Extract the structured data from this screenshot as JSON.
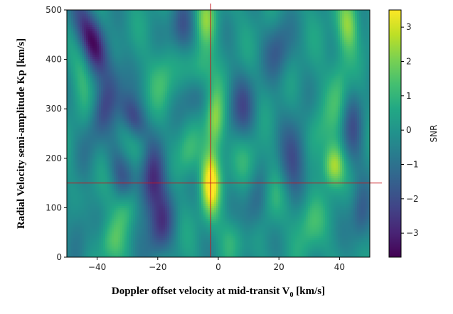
{
  "chart_data": {
    "type": "heatmap",
    "xlabel": "Doppler offset velocity at mid-transit V",
    "xlabel_subscript": "0",
    "xlabel_unit": " [km/s]",
    "ylabel": "Radial Velocity semi-amplitude Kp [km/s]",
    "xlim": [
      -50,
      50
    ],
    "ylim": [
      0,
      500
    ],
    "xticks": [
      -40,
      -20,
      0,
      20,
      40
    ],
    "yticks": [
      0,
      100,
      200,
      300,
      400,
      500
    ],
    "colorbar": {
      "label": "SNR",
      "range": [
        -3.7,
        3.5
      ],
      "ticks": [
        3,
        2,
        1,
        0,
        -1,
        -2,
        -3
      ],
      "tick_labels": [
        "3",
        "2",
        "1",
        "0",
        "−1",
        "−2",
        "−3"
      ],
      "colormap": "viridis"
    },
    "crosshair": {
      "x": -2.5,
      "y": 150,
      "color": "#c8141e"
    },
    "peak": {
      "x": -2.5,
      "y": 150,
      "snr": 3.5
    },
    "features": [
      {
        "x": -42,
        "y": 440,
        "sx": 3.5,
        "sy": 55,
        "tilt": -0.06,
        "amp": -3.3
      },
      {
        "x": -38,
        "y": 300,
        "sx": 3,
        "sy": 60,
        "tilt": 0.05,
        "amp": -1.6
      },
      {
        "x": -32,
        "y": 170,
        "sx": 3,
        "sy": 40,
        "tilt": -0.04,
        "amp": -1.4
      },
      {
        "x": -28,
        "y": 280,
        "sx": 3,
        "sy": 35,
        "tilt": -0.05,
        "amp": -2.4
      },
      {
        "x": -22,
        "y": 150,
        "sx": 3.5,
        "sy": 55,
        "tilt": 0.02,
        "amp": -2.8
      },
      {
        "x": -19,
        "y": 60,
        "sx": 3,
        "sy": 45,
        "tilt": 0.02,
        "amp": -2.0
      },
      {
        "x": -12,
        "y": 460,
        "sx": 3,
        "sy": 40,
        "tilt": 0.0,
        "amp": -1.8
      },
      {
        "x": -8,
        "y": 320,
        "sx": 3,
        "sy": 35,
        "tilt": 0.0,
        "amp": -1.3
      },
      {
        "x": 8,
        "y": 300,
        "sx": 3.5,
        "sy": 50,
        "tilt": 0.0,
        "amp": -1.7
      },
      {
        "x": 12,
        "y": 100,
        "sx": 3,
        "sy": 45,
        "tilt": 0.03,
        "amp": -1.5
      },
      {
        "x": 20,
        "y": 420,
        "sx": 3,
        "sy": 45,
        "tilt": 0.0,
        "amp": -1.6
      },
      {
        "x": 25,
        "y": 200,
        "sx": 3.5,
        "sy": 55,
        "tilt": 0.02,
        "amp": -2.0
      },
      {
        "x": 44,
        "y": 260,
        "sx": 3,
        "sy": 60,
        "tilt": 0.0,
        "amp": -1.6
      },
      {
        "x": 47,
        "y": 80,
        "sx": 2.5,
        "sy": 45,
        "tilt": 0.0,
        "amp": -1.5
      },
      {
        "x": -46,
        "y": 60,
        "sx": 2.5,
        "sy": 45,
        "tilt": 0.0,
        "amp": -1.0
      },
      {
        "x": -2.5,
        "y": 150,
        "sx": 2.2,
        "sy": 45,
        "tilt": 0.0,
        "amp": 3.6
      },
      {
        "x": -1,
        "y": 275,
        "sx": 2.2,
        "sy": 45,
        "tilt": 0.0,
        "amp": 2.6
      },
      {
        "x": -4,
        "y": 480,
        "sx": 2.5,
        "sy": 40,
        "tilt": 0.0,
        "amp": 1.8
      },
      {
        "x": -6,
        "y": 380,
        "sx": 3,
        "sy": 35,
        "tilt": 0.0,
        "amp": 1.5
      },
      {
        "x": -10,
        "y": 210,
        "sx": 2.5,
        "sy": 35,
        "tilt": 0.0,
        "amp": 1.3
      },
      {
        "x": -30,
        "y": 100,
        "sx": 3,
        "sy": 35,
        "tilt": 0.03,
        "amp": 1.6
      },
      {
        "x": -36,
        "y": 30,
        "sx": 3,
        "sy": 30,
        "tilt": 0.0,
        "amp": 1.2
      },
      {
        "x": -45,
        "y": 380,
        "sx": 2.5,
        "sy": 50,
        "tilt": 0.0,
        "amp": 1.0
      },
      {
        "x": -18,
        "y": 360,
        "sx": 3,
        "sy": 45,
        "tilt": 0.0,
        "amp": 1.2
      },
      {
        "x": 10,
        "y": 200,
        "sx": 3,
        "sy": 40,
        "tilt": 0.0,
        "amp": 1.0
      },
      {
        "x": 18,
        "y": 120,
        "sx": 3,
        "sy": 40,
        "tilt": 0.0,
        "amp": 1.1
      },
      {
        "x": 38,
        "y": 185,
        "sx": 2.5,
        "sy": 30,
        "tilt": 0.0,
        "amp": 2.8
      },
      {
        "x": 40,
        "y": 330,
        "sx": 2.5,
        "sy": 60,
        "tilt": 0.0,
        "amp": 1.4
      },
      {
        "x": 43,
        "y": 470,
        "sx": 2.5,
        "sy": 40,
        "tilt": 0.0,
        "amp": 2.2
      },
      {
        "x": 30,
        "y": 70,
        "sx": 3,
        "sy": 40,
        "tilt": 0.0,
        "amp": 1.3
      },
      {
        "x": 33,
        "y": 250,
        "sx": 3,
        "sy": 40,
        "tilt": 0.0,
        "amp": 1.0
      },
      {
        "x": 5,
        "y": 40,
        "sx": 3,
        "sy": 30,
        "tilt": 0.0,
        "amp": 1.0
      },
      {
        "x": -25,
        "y": 230,
        "sx": 2.5,
        "sy": 35,
        "tilt": 0.0,
        "amp": 1.0
      }
    ]
  }
}
